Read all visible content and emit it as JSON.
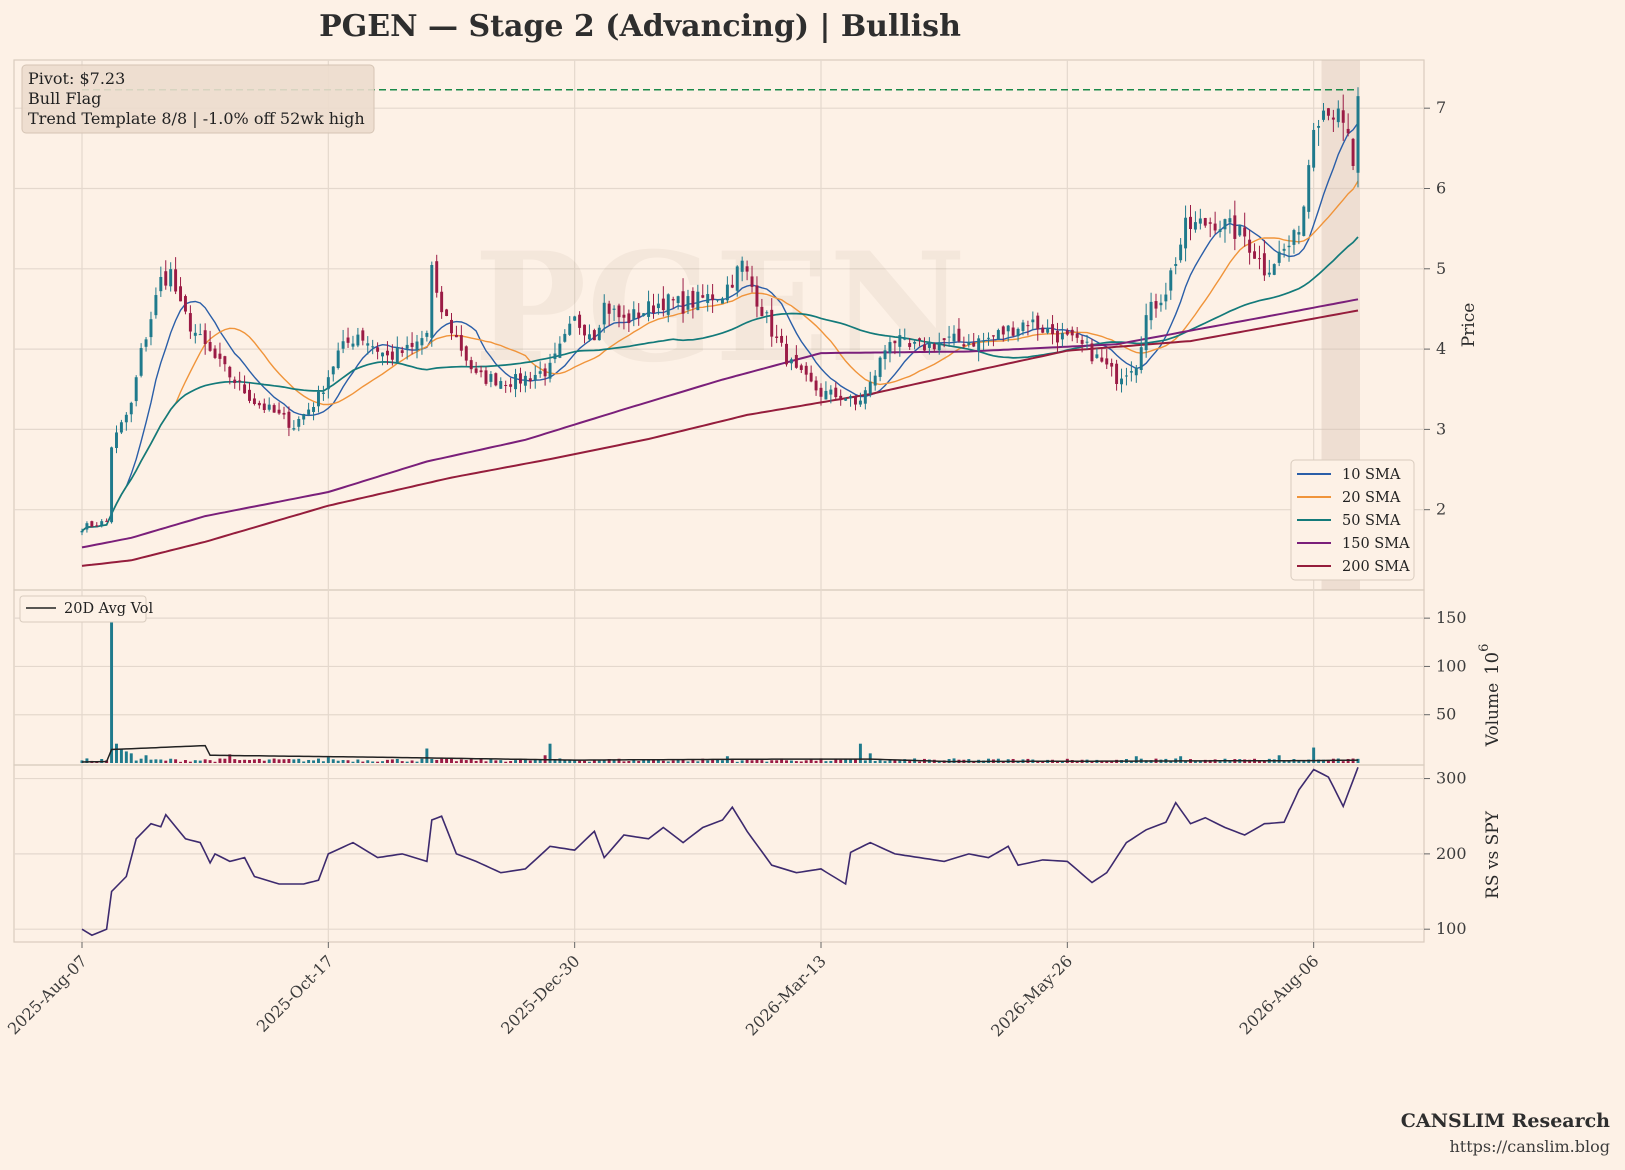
{
  "title": "PGEN  —  Stage 2 (Advancing)  |  Bullish",
  "watermark": "PGEN",
  "annotation": {
    "pivot": "Pivot: $7.23",
    "pattern": "Bull Flag",
    "template": "Trend Template 8/8  |  -1.0% off 52wk high"
  },
  "footer": {
    "brand": "CANSLIM Research",
    "url": "https://canslim.blog"
  },
  "colors": {
    "background": "#fdf1e6",
    "grid": "#e4d8cd",
    "up": "#1f7a8c",
    "down": "#9b1b45",
    "pivot_line": "#1a8a4a",
    "sma10": "#2a5ea8",
    "sma20": "#f0943a",
    "sma50": "#137a7a",
    "sma150": "#7a1f7a",
    "sma200": "#951d3c",
    "rs": "#3d2a6e",
    "avgvol": "#222222"
  },
  "chart_data": [
    {
      "panel": "price",
      "type": "candlestick",
      "ylabel": "Price",
      "ylim": [
        1.0,
        7.6
      ],
      "yticks": [
        2,
        3,
        4,
        5,
        6,
        7
      ],
      "pivot": 7.23,
      "highlight_last_bars": 8,
      "x_tick_labels": [
        "2025-Aug-07",
        "2025-Oct-17",
        "2025-Dec-30",
        "2026-Mar-13",
        "2026-May-26",
        "2026-Aug-06"
      ],
      "x_tick_index": [
        0,
        50,
        100,
        150,
        200,
        250
      ],
      "n_bars": 260,
      "close_anchors": [
        [
          0,
          1.78
        ],
        [
          5,
          1.85
        ],
        [
          6,
          2.8
        ],
        [
          10,
          3.3
        ],
        [
          12,
          3.95
        ],
        [
          16,
          4.85
        ],
        [
          18,
          4.95
        ],
        [
          20,
          4.5
        ],
        [
          24,
          4.1
        ],
        [
          28,
          3.8
        ],
        [
          35,
          3.35
        ],
        [
          43,
          3.05
        ],
        [
          48,
          3.4
        ],
        [
          52,
          3.95
        ],
        [
          56,
          4.2
        ],
        [
          62,
          3.9
        ],
        [
          67,
          4.0
        ],
        [
          70,
          4.2
        ],
        [
          71,
          5.0
        ],
        [
          72,
          4.6
        ],
        [
          75,
          4.25
        ],
        [
          80,
          3.65
        ],
        [
          88,
          3.6
        ],
        [
          95,
          3.75
        ],
        [
          100,
          4.35
        ],
        [
          104,
          4.2
        ],
        [
          106,
          4.55
        ],
        [
          110,
          4.35
        ],
        [
          118,
          4.6
        ],
        [
          122,
          4.55
        ],
        [
          130,
          4.7
        ],
        [
          134,
          5.05
        ],
        [
          138,
          4.5
        ],
        [
          141,
          4.1
        ],
        [
          145,
          3.7
        ],
        [
          150,
          3.45
        ],
        [
          155,
          3.4
        ],
        [
          157,
          3.3
        ],
        [
          160,
          3.55
        ],
        [
          164,
          4.15
        ],
        [
          168,
          4.0
        ],
        [
          175,
          4.1
        ],
        [
          183,
          4.1
        ],
        [
          192,
          4.35
        ],
        [
          197,
          4.2
        ],
        [
          204,
          4.0
        ],
        [
          210,
          3.65
        ],
        [
          214,
          3.85
        ],
        [
          216,
          4.4
        ],
        [
          220,
          4.75
        ],
        [
          224,
          5.5
        ],
        [
          230,
          5.6
        ],
        [
          236,
          5.4
        ],
        [
          240,
          5.0
        ],
        [
          246,
          5.35
        ],
        [
          248,
          5.8
        ],
        [
          250,
          6.9
        ],
        [
          253,
          7.05
        ],
        [
          255,
          6.85
        ],
        [
          257,
          6.6
        ],
        [
          258,
          6.3
        ],
        [
          259,
          7.15
        ]
      ],
      "series": [
        {
          "name": "10 SMA",
          "window": 10
        },
        {
          "name": "20 SMA",
          "window": 20
        },
        {
          "name": "50 SMA",
          "window": 50
        },
        {
          "name": "150 SMA",
          "anchors": [
            [
              0,
              1.53
            ],
            [
              10,
              1.65
            ],
            [
              25,
              1.92
            ],
            [
              50,
              2.22
            ],
            [
              70,
              2.6
            ],
            [
              90,
              2.87
            ],
            [
              110,
              3.25
            ],
            [
              130,
              3.62
            ],
            [
              150,
              3.95
            ],
            [
              180,
              3.97
            ],
            [
              210,
              4.06
            ],
            [
              240,
              4.4
            ],
            [
              259,
              4.62
            ]
          ]
        },
        {
          "name": "200 SMA",
          "anchors": [
            [
              0,
              1.3
            ],
            [
              10,
              1.37
            ],
            [
              25,
              1.6
            ],
            [
              50,
              2.05
            ],
            [
              75,
              2.4
            ],
            [
              95,
              2.63
            ],
            [
              115,
              2.88
            ],
            [
              135,
              3.18
            ],
            [
              160,
              3.44
            ],
            [
              185,
              3.78
            ],
            [
              200,
              3.98
            ],
            [
              225,
              4.1
            ],
            [
              259,
              4.48
            ]
          ]
        }
      ],
      "legend": [
        "10 SMA",
        "20 SMA",
        "50 SMA",
        "150 SMA",
        "200 SMA"
      ],
      "legend_position": "lower-right"
    },
    {
      "panel": "volume",
      "type": "bar",
      "ylabel": "Volume",
      "unit_exponent": "6",
      "ylim": [
        0,
        175
      ],
      "yticks": [
        50,
        100,
        150
      ],
      "series_names": [
        "20D Avg Vol"
      ],
      "legend_position": "upper-left",
      "spikes": [
        [
          6,
          150
        ],
        [
          7,
          20
        ],
        [
          8,
          15
        ],
        [
          9,
          12
        ],
        [
          10,
          10
        ],
        [
          13,
          8
        ],
        [
          30,
          9
        ],
        [
          50,
          6
        ],
        [
          70,
          15
        ],
        [
          94,
          8
        ],
        [
          95,
          20
        ],
        [
          131,
          7
        ],
        [
          158,
          20
        ],
        [
          160,
          10
        ],
        [
          243,
          8
        ],
        [
          250,
          16
        ],
        [
          223,
          7
        ],
        [
          214,
          7
        ]
      ],
      "baseline_volume": 3,
      "avg_anchors": [
        [
          0,
          1
        ],
        [
          5,
          1.5
        ],
        [
          6,
          14
        ],
        [
          25,
          18
        ],
        [
          26,
          8
        ],
        [
          60,
          6
        ],
        [
          100,
          3
        ],
        [
          140,
          4
        ],
        [
          160,
          4
        ],
        [
          176,
          1.5
        ],
        [
          250,
          2.5
        ],
        [
          259,
          3
        ]
      ]
    },
    {
      "panel": "relative_strength",
      "type": "line",
      "ylabel": "RS vs SPY",
      "ylim": [
        83,
        318
      ],
      "yticks": [
        100,
        200,
        300
      ],
      "anchors": [
        [
          0,
          100
        ],
        [
          2,
          92
        ],
        [
          5,
          100
        ],
        [
          6,
          150
        ],
        [
          9,
          170
        ],
        [
          11,
          220
        ],
        [
          14,
          240
        ],
        [
          16,
          236
        ],
        [
          17,
          252
        ],
        [
          21,
          220
        ],
        [
          24,
          215
        ],
        [
          26,
          188
        ],
        [
          27,
          200
        ],
        [
          30,
          190
        ],
        [
          33,
          195
        ],
        [
          35,
          170
        ],
        [
          40,
          160
        ],
        [
          45,
          160
        ],
        [
          48,
          165
        ],
        [
          50,
          200
        ],
        [
          55,
          215
        ],
        [
          60,
          195
        ],
        [
          65,
          200
        ],
        [
          70,
          190
        ],
        [
          71,
          245
        ],
        [
          73,
          250
        ],
        [
          76,
          200
        ],
        [
          80,
          190
        ],
        [
          85,
          175
        ],
        [
          90,
          180
        ],
        [
          95,
          210
        ],
        [
          100,
          205
        ],
        [
          104,
          230
        ],
        [
          106,
          195
        ],
        [
          110,
          225
        ],
        [
          115,
          220
        ],
        [
          118,
          235
        ],
        [
          122,
          215
        ],
        [
          126,
          235
        ],
        [
          130,
          245
        ],
        [
          132,
          262
        ],
        [
          135,
          230
        ],
        [
          140,
          185
        ],
        [
          145,
          175
        ],
        [
          150,
          180
        ],
        [
          155,
          160
        ],
        [
          156,
          202
        ],
        [
          160,
          215
        ],
        [
          165,
          200
        ],
        [
          170,
          195
        ],
        [
          175,
          190
        ],
        [
          180,
          200
        ],
        [
          184,
          195
        ],
        [
          188,
          210
        ],
        [
          190,
          185
        ],
        [
          195,
          192
        ],
        [
          200,
          190
        ],
        [
          205,
          162
        ],
        [
          208,
          175
        ],
        [
          212,
          215
        ],
        [
          216,
          232
        ],
        [
          220,
          242
        ],
        [
          222,
          268
        ],
        [
          225,
          240
        ],
        [
          228,
          248
        ],
        [
          232,
          235
        ],
        [
          236,
          225
        ],
        [
          240,
          240
        ],
        [
          244,
          242
        ],
        [
          247,
          285
        ],
        [
          250,
          312
        ],
        [
          253,
          302
        ],
        [
          256,
          263
        ],
        [
          259,
          315
        ]
      ]
    }
  ]
}
